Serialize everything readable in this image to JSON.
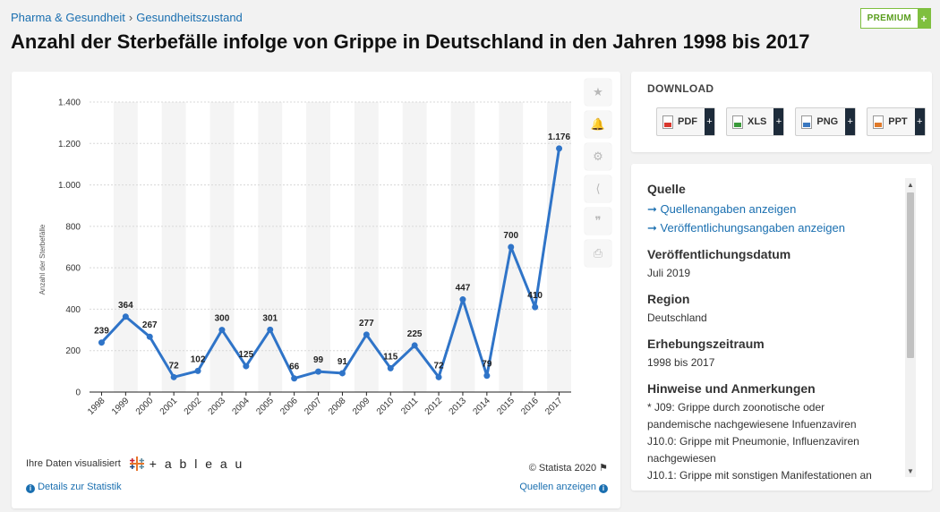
{
  "breadcrumb": {
    "part1": "Pharma & Gesundheit",
    "separator": "›",
    "part2": "Gesundheitszustand"
  },
  "premium": {
    "label": "PREMIUM",
    "plus": "+"
  },
  "title": "Anzahl der Sterbefälle infolge von Grippe in Deutschland in den Jahren 1998 bis 2017",
  "chart_data": {
    "type": "line",
    "categories": [
      "1998",
      "1999",
      "2000",
      "2001",
      "2002",
      "2003",
      "2004",
      "2005",
      "2006",
      "2007",
      "2008",
      "2009",
      "2010",
      "2011",
      "2012",
      "2013",
      "2014",
      "2015",
      "2016",
      "2017"
    ],
    "values": [
      239,
      364,
      267,
      72,
      102,
      300,
      125,
      301,
      66,
      99,
      91,
      277,
      115,
      225,
      72,
      447,
      79,
      700,
      410,
      1176
    ],
    "value_labels": [
      "239",
      "364",
      "267",
      "72",
      "102",
      "300",
      "125",
      "301",
      "66",
      "99",
      "91",
      "277",
      "115",
      "225",
      "72",
      "447",
      "79",
      "700",
      "410",
      "1.176"
    ],
    "ylim": [
      0,
      1400
    ],
    "yticks": [
      0,
      200,
      400,
      600,
      800,
      1000,
      1200,
      1400
    ],
    "ytick_labels": [
      "0",
      "200",
      "400",
      "600",
      "800",
      "1.000",
      "1.200",
      "1.400"
    ],
    "ylabel": "Anzahl der Sterbefälle",
    "xlabel": "",
    "title": "",
    "line_color": "#2f74c8",
    "grid": true
  },
  "tools": [
    "star-icon",
    "bell-icon",
    "gear-icon",
    "share-icon",
    "quote-icon",
    "print-icon"
  ],
  "tool_glyphs": [
    "★",
    "🔔",
    "⚙",
    "⟨",
    "❞",
    "⎙"
  ],
  "footer": {
    "tableau_prefix": "Ihre Daten visualisiert",
    "tableau_word": "+ a b l e a u",
    "copyright": "© Statista 2020 ⚑",
    "details_link": "Details zur Statistik",
    "sources_link": "Quellen anzeigen",
    "info_glyph": "i"
  },
  "download": {
    "title": "DOWNLOAD",
    "buttons": [
      {
        "label": "PDF",
        "color": "#d9382e"
      },
      {
        "label": "XLS",
        "color": "#3a9a3a"
      },
      {
        "label": "PNG",
        "color": "#3a78c0"
      },
      {
        "label": "PPT",
        "color": "#e07a2a"
      }
    ],
    "plus": "+"
  },
  "info": {
    "source_heading": "Quelle",
    "source_link1": "➞ Quellenangaben anzeigen",
    "source_link2": "➞ Veröffentlichungsangaben anzeigen",
    "pub_date_heading": "Veröffentlichungsdatum",
    "pub_date": "Juli 2019",
    "region_heading": "Region",
    "region": "Deutschland",
    "period_heading": "Erhebungszeitraum",
    "period": "1998 bis 2017",
    "notes_heading": "Hinweise und Anmerkungen",
    "notes": [
      "* J09: Grippe durch zoonotische oder",
      "pandemische nachgewiesene Infuenzaviren",
      "J10.0: Grippe mit Pneumonie, Influenzaviren",
      "nachgewiesen",
      "J10.1: Grippe mit sonstigen Manifestationen an"
    ],
    "scroll_up": "▲",
    "scroll_down": "▼"
  }
}
